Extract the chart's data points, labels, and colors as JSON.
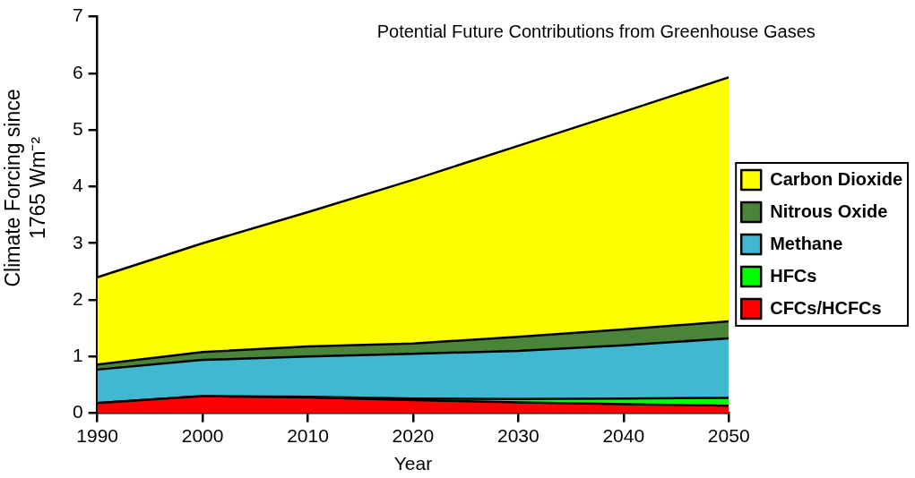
{
  "chart_data": {
    "type": "area",
    "title": "Potential Future Contributions from Greenhouse Gases",
    "xlabel": "Year",
    "ylabel": "Climate Forcing since 1765 Wm⁻²",
    "x": [
      1990,
      2000,
      2010,
      2020,
      2030,
      2040,
      2050
    ],
    "stacked": true,
    "series": [
      {
        "name": "CFCs/HCFCs",
        "color": "#ff0000",
        "values": [
          0.18,
          0.3,
          0.28,
          0.23,
          0.19,
          0.16,
          0.13
        ]
      },
      {
        "name": "HFCs",
        "color": "#00ff00",
        "values": [
          0,
          0,
          0.01,
          0.03,
          0.06,
          0.1,
          0.14
        ]
      },
      {
        "name": "Methane",
        "color": "#40b8d0",
        "values": [
          0.59,
          0.64,
          0.71,
          0.79,
          0.85,
          0.94,
          1.05
        ]
      },
      {
        "name": "Nitrous Oxide",
        "color": "#4a8438",
        "values": [
          0.09,
          0.14,
          0.18,
          0.18,
          0.25,
          0.28,
          0.3
        ]
      },
      {
        "name": "Carbon Dioxide",
        "color": "#ffff00",
        "values": [
          1.54,
          1.92,
          2.37,
          2.89,
          3.37,
          3.84,
          4.31
        ]
      }
    ],
    "xlim": [
      1990,
      2050
    ],
    "xticks": [
      1990,
      2000,
      2010,
      2020,
      2030,
      2040,
      2050
    ],
    "ylim": [
      0,
      7
    ],
    "yticks": [
      0,
      1,
      2,
      3,
      4,
      5,
      6,
      7
    ],
    "grid": false,
    "legend": "right"
  }
}
